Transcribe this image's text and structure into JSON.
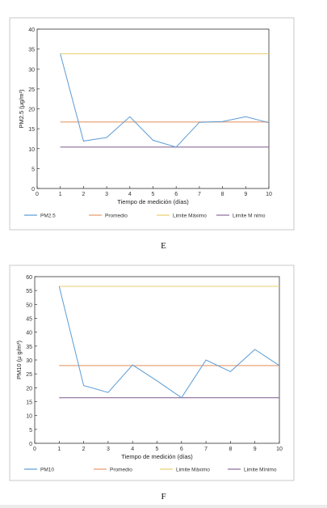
{
  "chart_data": [
    {
      "type": "line",
      "panel_label": "E",
      "xlabel": "Tiempo de medición (días)",
      "ylabel": "PM2.5 (μg/m³)",
      "x": [
        1,
        2,
        3,
        4,
        5,
        6,
        7,
        8,
        9,
        10
      ],
      "xlim": [
        0,
        10
      ],
      "ylim": [
        0,
        40
      ],
      "xticks": [
        "0",
        "1",
        "2",
        "3",
        "4",
        "5",
        "6",
        "7",
        "8",
        "9",
        "10"
      ],
      "yticks": [
        "0",
        "5",
        "10",
        "15",
        "20",
        "25",
        "30",
        "35",
        "40"
      ],
      "legend_position": "bottom",
      "grid": false,
      "series": [
        {
          "name": "PM2.5",
          "color": "#5b9bd5",
          "values": [
            33.8,
            11.9,
            12.8,
            18.0,
            12.1,
            10.4,
            16.6,
            16.8,
            18.0,
            16.5
          ]
        },
        {
          "name": "Promedio",
          "color": "#e69a6a",
          "values": [
            16.7,
            16.7,
            16.7,
            16.7,
            16.7,
            16.7,
            16.7,
            16.7,
            16.7,
            16.7
          ]
        },
        {
          "name": "Limite Máximo",
          "color": "#e8cf70",
          "values": [
            33.8,
            33.8,
            33.8,
            33.8,
            33.8,
            33.8,
            33.8,
            33.8,
            33.8,
            33.8
          ]
        },
        {
          "name": "Limite M nimo",
          "color": "#8c6a9a",
          "values": [
            10.4,
            10.4,
            10.4,
            10.4,
            10.4,
            10.4,
            10.4,
            10.4,
            10.4,
            10.4
          ]
        }
      ]
    },
    {
      "type": "line",
      "panel_label": "F",
      "xlabel": "Tiempo de medición (días)",
      "ylabel": "PM10 (μ g/m³)",
      "x": [
        1,
        2,
        3,
        4,
        5,
        6,
        7,
        8,
        9,
        10
      ],
      "xlim": [
        0,
        10
      ],
      "ylim": [
        0,
        60
      ],
      "xticks": [
        "0",
        "1",
        "2",
        "3",
        "4",
        "5",
        "6",
        "7",
        "8",
        "9",
        "10"
      ],
      "yticks": [
        "0",
        "5",
        "10",
        "15",
        "20",
        "25",
        "30",
        "35",
        "40",
        "45",
        "50",
        "55",
        "60"
      ],
      "legend_position": "bottom",
      "grid": false,
      "series": [
        {
          "name": "PM10",
          "color": "#5b9bd5",
          "values": [
            56.5,
            20.8,
            18.3,
            28.2,
            22.5,
            16.4,
            30.0,
            25.8,
            33.8,
            28.0
          ]
        },
        {
          "name": "Promedio",
          "color": "#e69a6a",
          "values": [
            28.0,
            28.0,
            28.0,
            28.0,
            28.0,
            28.0,
            28.0,
            28.0,
            28.0,
            28.0
          ]
        },
        {
          "name": "Limite Máximo",
          "color": "#e8cf70",
          "values": [
            56.5,
            56.5,
            56.5,
            56.5,
            56.5,
            56.5,
            56.5,
            56.5,
            56.5,
            56.5
          ]
        },
        {
          "name": "Limite Mínimo",
          "color": "#8c6a9a",
          "values": [
            16.4,
            16.4,
            16.4,
            16.4,
            16.4,
            16.4,
            16.4,
            16.4,
            16.4,
            16.4
          ]
        }
      ]
    }
  ],
  "captions": [
    "E",
    "F"
  ]
}
